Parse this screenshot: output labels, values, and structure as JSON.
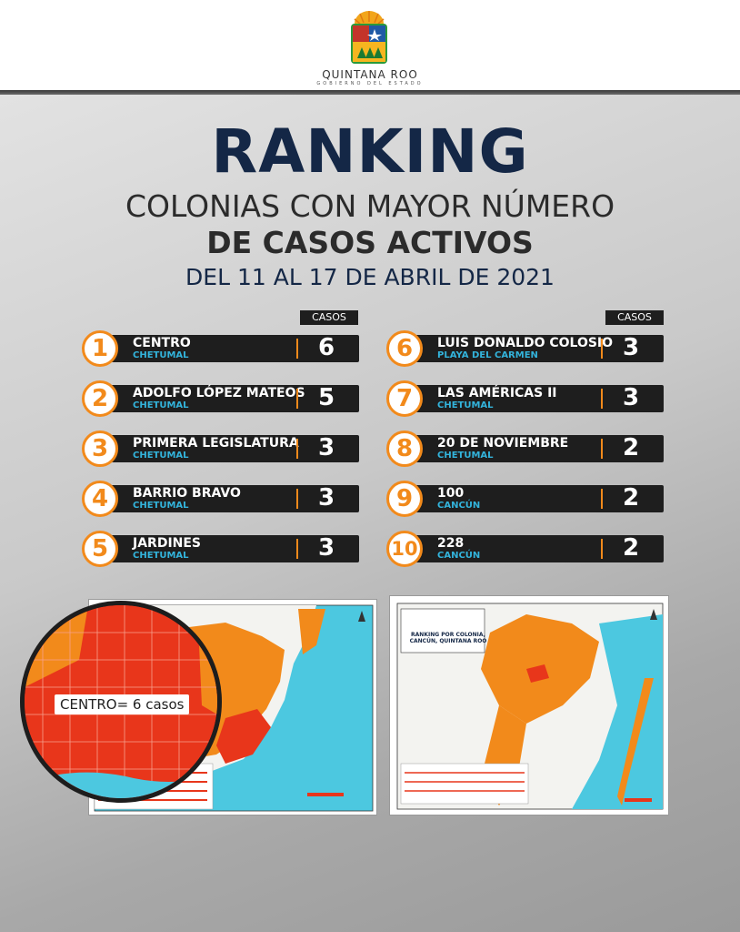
{
  "header": {
    "brand": "QUINTANA ROO",
    "brand_sub": "GOBIERNO DEL ESTADO"
  },
  "title": "RANKING",
  "subtitle_line1": "COLONIAS CON MAYOR NÚMERO",
  "subtitle_line2": "DE CASOS ACTIVOS",
  "date_range": "DEL 11 AL 17 DE ABRIL DE 2021",
  "column_header": "CASOS",
  "ranking_left": [
    {
      "rank": "1",
      "name": "CENTRO",
      "city": "CHETUMAL",
      "cases": "6"
    },
    {
      "rank": "2",
      "name": "ADOLFO LÓPEZ MATEOS",
      "city": "CHETUMAL",
      "cases": "5"
    },
    {
      "rank": "3",
      "name": "PRIMERA LEGISLATURA",
      "city": "CHETUMAL",
      "cases": "3"
    },
    {
      "rank": "4",
      "name": "BARRIO BRAVO",
      "city": "CHETUMAL",
      "cases": "3"
    },
    {
      "rank": "5",
      "name": "JARDINES",
      "city": "CHETUMAL",
      "cases": "3"
    }
  ],
  "ranking_right": [
    {
      "rank": "6",
      "name": "LUIS DONALDO COLOSIO",
      "city": "PLAYA DEL CARMEN",
      "cases": "3"
    },
    {
      "rank": "7",
      "name": "LAS AMÉRICAS II",
      "city": "CHETUMAL",
      "cases": "3"
    },
    {
      "rank": "8",
      "name": "20 DE NOVIEMBRE",
      "city": "CHETUMAL",
      "cases": "2"
    },
    {
      "rank": "9",
      "name": "100",
      "city": "CANCÚN",
      "cases": "2"
    },
    {
      "rank": "10",
      "name": "228",
      "city": "CANCÚN",
      "cases": "2"
    }
  ],
  "map_left": {
    "zoom_label": "CENTRO= 6 casos"
  },
  "map_right": {
    "title": "RANKING POR COLONIA, CANCÚN, QUINTANA ROO"
  },
  "colors": {
    "navy": "#142746",
    "orange": "#f28a1b",
    "cyan": "#33b4dc",
    "bar": "#1e1e1e",
    "map_red": "#e8361b",
    "sea": "#4cc8e0"
  }
}
